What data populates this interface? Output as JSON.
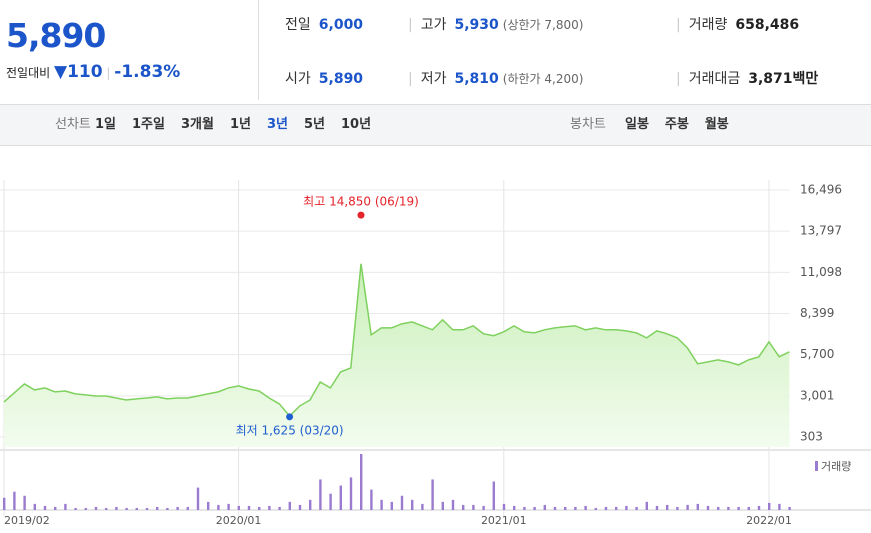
{
  "header": {
    "price": "5,890",
    "change_label": "전일대비",
    "change": "110",
    "change_pct": "-1.83%",
    "stats": [
      {
        "label": "전일",
        "value": "6,000"
      },
      {
        "label": "고가",
        "value": "5,930",
        "sub": "(상한가 7,800)"
      },
      {
        "label": "거래량",
        "value": "658,486"
      },
      {
        "label": "시가",
        "value": "5,890"
      },
      {
        "label": "저가",
        "value": "5,810",
        "sub": "(하한가 4,200)"
      },
      {
        "label": "거래대금",
        "value": "3,871백만"
      }
    ]
  },
  "toolbar": {
    "line_label": "선차트",
    "periods": [
      "1일",
      "1주일",
      "3개월",
      "1년",
      "3년",
      "5년",
      "10년"
    ],
    "selected": 4,
    "candle_label": "봉차트",
    "candles": [
      "일봉",
      "주봉",
      "월봉"
    ]
  },
  "chart_data": {
    "type": "line",
    "categories": [
      "2019/02",
      null,
      null,
      null,
      null,
      null,
      null,
      null,
      null,
      null,
      null,
      null,
      null,
      null,
      null,
      null,
      null,
      null,
      null,
      null,
      null,
      null,
      null,
      "2020/01",
      null,
      null,
      null,
      null,
      null,
      null,
      null,
      null,
      null,
      null,
      null,
      null,
      null,
      null,
      null,
      null,
      null,
      null,
      null,
      null,
      null,
      null,
      null,
      null,
      null,
      "2021/01",
      null,
      null,
      null,
      null,
      null,
      null,
      null,
      null,
      null,
      null,
      null,
      null,
      null,
      null,
      null,
      null,
      null,
      null,
      null,
      null,
      null,
      null,
      null,
      null,
      null,
      "2022/01",
      null,
      null
    ],
    "series": [
      {
        "color": "#7fd15e",
        "values": [
          2600,
          3190,
          3780,
          3390,
          3520,
          3260,
          3320,
          3130,
          3060,
          2990,
          2990,
          2860,
          2730,
          2800,
          2860,
          2930,
          2800,
          2860,
          2860,
          2990,
          3130,
          3260,
          3520,
          3650,
          3450,
          3320,
          2860,
          2470,
          1680,
          2340,
          2730,
          3910,
          3520,
          4570,
          4830,
          11660,
          7000,
          7460,
          7460,
          7720,
          7850,
          7590,
          7330,
          7990,
          7330,
          7330,
          7590,
          7070,
          6940,
          7200,
          7590,
          7200,
          7130,
          7330,
          7460,
          7530,
          7590,
          7330,
          7460,
          7330,
          7330,
          7260,
          7130,
          6800,
          7260,
          7070,
          6800,
          6150,
          5100,
          5230,
          5360,
          5230,
          5030,
          5360,
          5560,
          6540,
          5560,
          5890
        ]
      },
      {
        "name": "거래량",
        "color": "#9b7bd0",
        "values": [
          4800000,
          7200000,
          5600000,
          2400000,
          1600000,
          1200000,
          2400000,
          800000,
          800000,
          1200000,
          800000,
          1200000,
          800000,
          800000,
          800000,
          1200000,
          800000,
          1200000,
          1200000,
          8800000,
          3200000,
          2000000,
          2400000,
          1600000,
          1600000,
          1200000,
          1600000,
          1200000,
          3200000,
          2000000,
          4000000,
          12000000,
          6400000,
          9600000,
          12800000,
          22000000,
          8000000,
          4000000,
          3200000,
          5600000,
          4000000,
          2400000,
          12000000,
          3200000,
          4000000,
          2000000,
          2000000,
          1600000,
          11200000,
          2400000,
          1600000,
          1200000,
          1200000,
          2000000,
          1200000,
          1200000,
          1200000,
          1600000,
          800000,
          1200000,
          1200000,
          1600000,
          1200000,
          3200000,
          1600000,
          2000000,
          1200000,
          2000000,
          2400000,
          1600000,
          1200000,
          1200000,
          1200000,
          1200000,
          1600000,
          2800000,
          2400000,
          1200000
        ]
      }
    ],
    "ylim": [
      -354,
      17153
    ],
    "yticks": [
      303,
      {
        "value": 3001,
        "label": "3,001"
      },
      {
        "value": 5700,
        "label": "5,700"
      },
      {
        "value": 8399,
        "label": "8,399"
      },
      {
        "value": 11098,
        "label": "11,098"
      },
      {
        "value": 13797,
        "label": "13,797"
      },
      {
        "value": 16496,
        "label": "16,496"
      }
    ],
    "grid": true,
    "annotations": [
      {
        "text": "최고 14,850 (06/19)",
        "value": 14850,
        "color": "#e4232a",
        "at": "max"
      },
      {
        "text": "최저 1,625 (03/20)",
        "value": 1625,
        "color": "#1f5fcf",
        "at": "min"
      }
    ]
  }
}
